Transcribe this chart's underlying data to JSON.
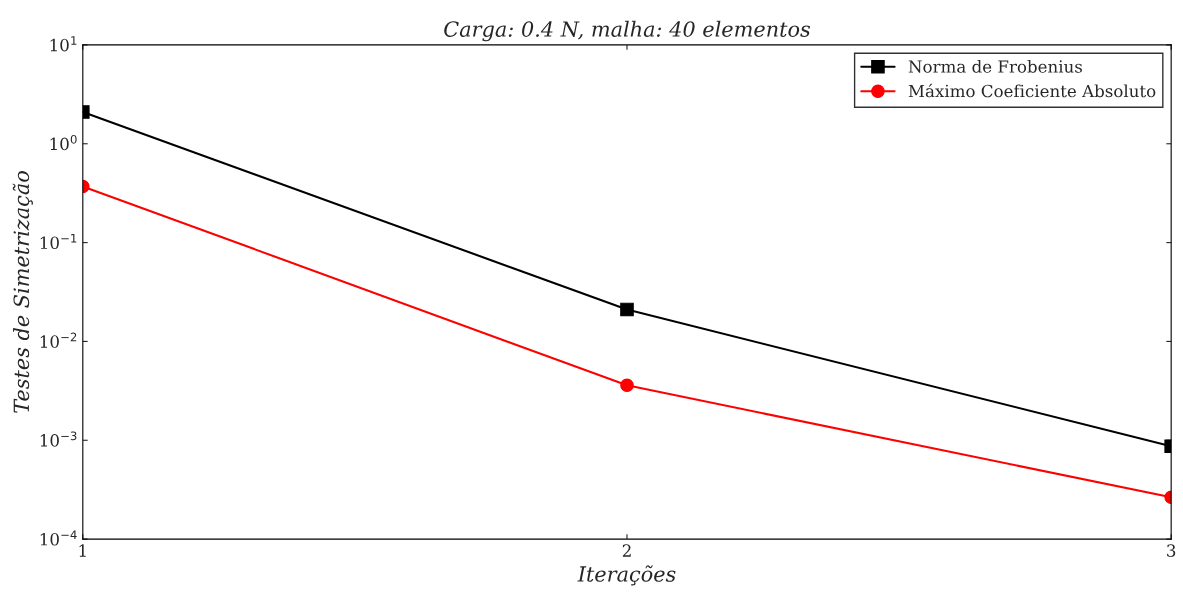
{
  "chart_data": {
    "type": "line",
    "title": "Carga: 0.4 N, malha: 40 elementos",
    "xlabel": "Iterações",
    "ylabel": "Testes de Simetrização",
    "x": [
      1,
      2,
      3
    ],
    "series": [
      {
        "name": "Norma de Frobenius",
        "color": "#000000",
        "marker": "square",
        "values": [
          2.1,
          0.021,
          0.00087
        ]
      },
      {
        "name": "Máximo Coeficiente Absoluto",
        "color": "#ff0000",
        "marker": "circle",
        "values": [
          0.37,
          0.0036,
          0.000265
        ]
      }
    ],
    "log": "y",
    "xlim": [
      1,
      3
    ],
    "ylim": [
      0.0001,
      10
    ],
    "xticks": [
      1,
      2,
      3
    ],
    "yticks": [
      {
        "value": 0.0001,
        "label": "10$^{−4}$"
      },
      {
        "value": 0.001,
        "label": "10$^{−3}$"
      },
      {
        "value": 0.01,
        "label": "10$^{−2}$"
      },
      {
        "value": 0.1,
        "label": "10$^{−1}$"
      },
      {
        "value": 1,
        "label": "10$^{0}$"
      },
      {
        "value": 10,
        "label": "10$^{1}$"
      }
    ],
    "grid": false,
    "legend": "top right",
    "line_style": "solid"
  }
}
